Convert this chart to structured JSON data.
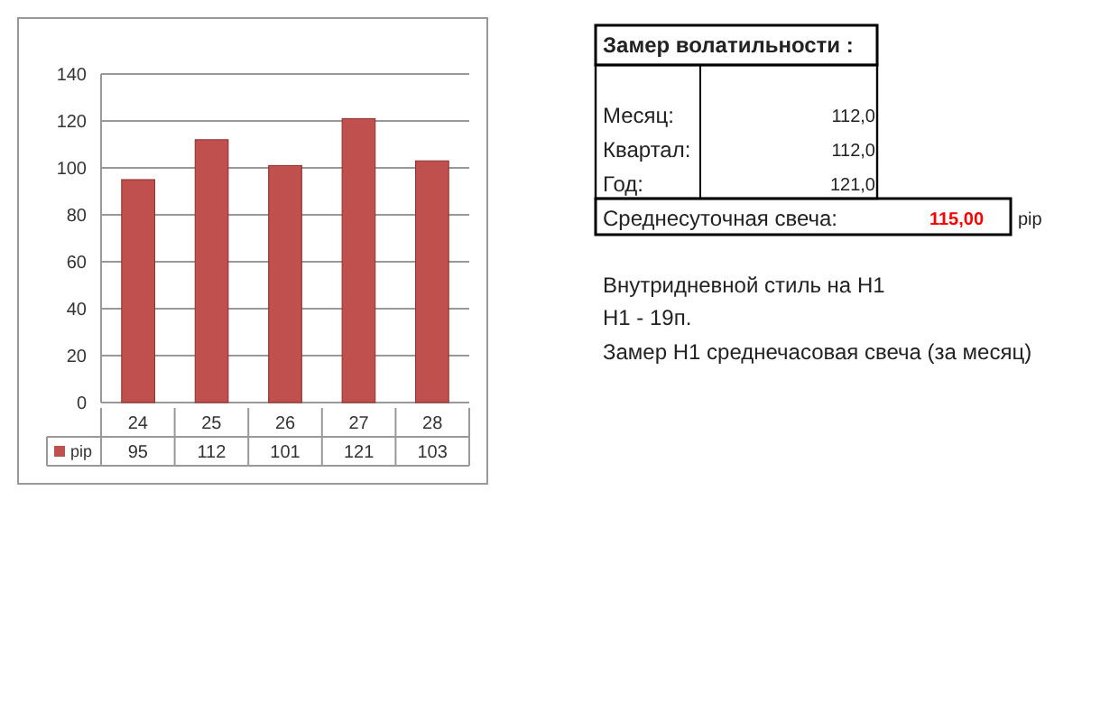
{
  "chart_data": [
    {
      "type": "bar",
      "categories": [
        "24",
        "25",
        "26",
        "27",
        "28"
      ],
      "series": [
        {
          "name": "pip",
          "color": "#c0504d",
          "values": [
            95,
            112,
            101,
            121,
            103
          ]
        }
      ],
      "ylim": [
        0,
        140
      ],
      "yticks": [
        0,
        20,
        40,
        60,
        80,
        100,
        120,
        140
      ],
      "grid": "y",
      "data_labels": true,
      "legend": "bottom"
    },
    {
      "type": "other",
      "title": "Замер  волатильности :",
      "annotations": [
        "Месяц:",
        "112,0",
        "Квартал:",
        "112,0",
        "Год:",
        "121,0",
        "Среднесуточная свеча:",
        "115,00",
        "pip",
        "Внутридневной стиль на H1",
        "H1 - 19п.",
        "Замер H1 среднечасовая свеча (за месяц)"
      ]
    }
  ]
}
